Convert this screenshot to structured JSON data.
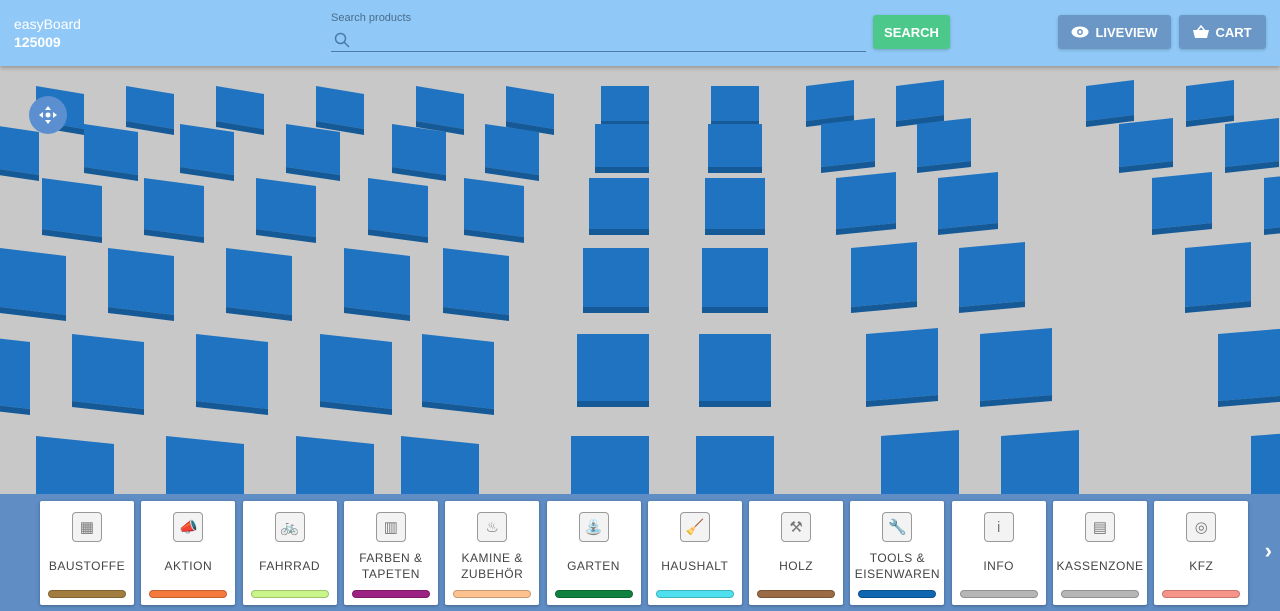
{
  "header": {
    "logo_alt": "easyBoard",
    "store_id": "125009",
    "search_label": "Search products",
    "search_placeholder": "",
    "search_button": "SEARCH",
    "liveview_button": "LIVEVIEW",
    "cart_button": "CART"
  },
  "categories": [
    {
      "label": "BAUSTOFFE",
      "color": "#a37c3f",
      "icon": "bricks-icon",
      "glyph": "▦"
    },
    {
      "label": "AKTION",
      "color": "#f47a3e",
      "icon": "megaphone-icon",
      "glyph": "📣"
    },
    {
      "label": "FAHRRAD",
      "color": "#c9f58a",
      "icon": "bicycle-icon",
      "glyph": "🚲"
    },
    {
      "label": "FARBEN & TAPETEN",
      "color": "#9c2283",
      "icon": "paint-roll-icon",
      "glyph": "▥"
    },
    {
      "label": "KAMINE & ZUBEHÖR",
      "color": "#fdc28f",
      "icon": "fireplace-icon",
      "glyph": "♨"
    },
    {
      "label": "GARTEN",
      "color": "#10813e",
      "icon": "watering-can-icon",
      "glyph": "⛲"
    },
    {
      "label": "HAUSHALT",
      "color": "#4ee0ee",
      "icon": "household-icon",
      "glyph": "🧹"
    },
    {
      "label": "HOLZ",
      "color": "#9a6b45",
      "icon": "tools-wood-icon",
      "glyph": "⚒"
    },
    {
      "label": "TOOLS & EISENWAREN",
      "color": "#0e67b0",
      "icon": "drill-icon",
      "glyph": "🔧"
    },
    {
      "label": "INFO",
      "color": "#b6b6b6",
      "icon": "info-icon",
      "glyph": "i"
    },
    {
      "label": "KASSENZONE",
      "color": "#b6b6b6",
      "icon": "cash-register-icon",
      "glyph": "▤"
    },
    {
      "label": "KFZ",
      "color": "#f7948a",
      "icon": "tire-icon",
      "glyph": "◎"
    }
  ],
  "next_label": "›"
}
